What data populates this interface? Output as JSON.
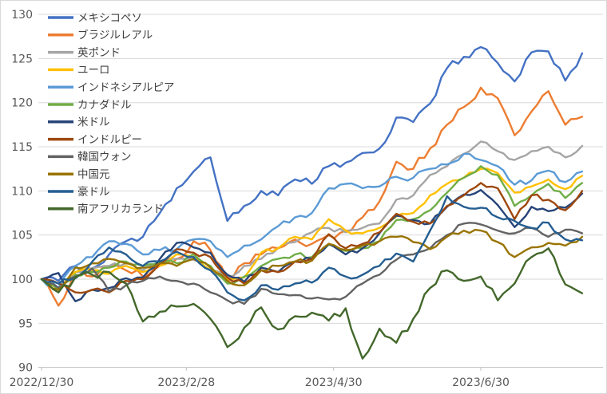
{
  "chart_data": {
    "type": "line",
    "title": "",
    "legend_position": "top-left-inside",
    "grid": true,
    "background_color": "#ffffff",
    "gridline_color": "#d9d9d9",
    "axis_line_color": "#bfbfbf",
    "axis_label_color": "#595959",
    "legend_text_color": "#404040",
    "y_axis": {
      "min": 90,
      "max": 130,
      "step": 5,
      "tick_labels": [
        "90",
        "95",
        "100",
        "105",
        "110",
        "115",
        "120",
        "125",
        "130"
      ]
    },
    "x_axis": {
      "tick_labels": [
        "2022/12/30",
        "2023/2/28",
        "2023/4/30",
        "2023/6/30"
      ],
      "tick_day_offsets": [
        0,
        60,
        121,
        182
      ],
      "total_days": 224,
      "sample_step_days": 7
    },
    "base_index_value": 100,
    "series": [
      {
        "name": "メキシコペソ",
        "color": "#4472C4",
        "values": [
          100,
          99.8,
          101.5,
          101.2,
          102.8,
          104.3,
          104.8,
          107.5,
          110.3,
          112.2,
          113.8,
          106.6,
          108.3,
          110,
          109.5,
          111.3,
          110.8,
          112.8,
          113.2,
          114.3,
          114.8,
          118.3,
          117.8,
          119.9,
          123.9,
          125.2,
          126.3,
          124.5,
          122.4,
          125.7,
          125.8,
          122.5,
          125.6
        ]
      },
      {
        "name": "ブラジルレアル",
        "color": "#ED7D31",
        "values": [
          100,
          97,
          100.8,
          100.3,
          101.5,
          101,
          100.3,
          101.5,
          102.3,
          104.3,
          103.3,
          99.8,
          101.8,
          102.8,
          103.5,
          104.5,
          104,
          105,
          105.5,
          107,
          108.8,
          113.3,
          112.5,
          114.8,
          117.5,
          119.5,
          121.7,
          120.5,
          116.3,
          119,
          121.3,
          117.5,
          118.4
        ]
      },
      {
        "name": "英ポンド",
        "color": "#A5A5A5",
        "values": [
          100,
          99,
          100.8,
          101.2,
          101.5,
          101.8,
          101,
          101.8,
          102.3,
          102.2,
          101,
          100.2,
          101.5,
          102.3,
          103.5,
          104.2,
          105.3,
          105.8,
          105.3,
          105.8,
          106.3,
          109,
          109.5,
          111.8,
          112.8,
          114.2,
          115.6,
          114.5,
          113.5,
          114.5,
          115,
          113.8,
          115.1
        ]
      },
      {
        "name": "ユーロ",
        "color": "#FFC000",
        "values": [
          100,
          98.8,
          100.8,
          101,
          100.6,
          101.5,
          100.8,
          101.5,
          102.8,
          102.5,
          101,
          100,
          100.2,
          103,
          103.5,
          104.8,
          104.5,
          106.8,
          105.5,
          105.2,
          105.8,
          107.1,
          107.5,
          109.5,
          110.8,
          111.5,
          112.5,
          112,
          109.8,
          110.5,
          111.3,
          110.2,
          111.7
        ]
      },
      {
        "name": "インドネシアルピア",
        "color": "#5B9BD5",
        "values": [
          100,
          99,
          101.5,
          102.5,
          104.3,
          104,
          102.8,
          103.3,
          103.4,
          104.5,
          104.3,
          102.5,
          103.8,
          104.5,
          106,
          107,
          107.5,
          110.3,
          110.8,
          110.3,
          110.5,
          111.6,
          111.5,
          112.5,
          113,
          114.2,
          113.5,
          112.8,
          110.7,
          111.2,
          112.3,
          111,
          112.2
        ]
      },
      {
        "name": "カナダドル",
        "color": "#70AD47",
        "values": [
          100,
          98.8,
          100.5,
          100.8,
          101.3,
          102,
          101.5,
          102,
          101.8,
          102.8,
          101.5,
          99.5,
          100.3,
          101.5,
          102.3,
          102.8,
          102.5,
          103.9,
          103.2,
          103.5,
          104.3,
          106.7,
          106.8,
          107.8,
          109.8,
          111.5,
          112.8,
          111.8,
          108.3,
          109.5,
          110.8,
          109.2,
          110.9
        ]
      },
      {
        "name": "米ドル",
        "color": "#264478",
        "values": [
          100,
          100.7,
          97.5,
          98.8,
          99,
          100.1,
          100.2,
          102.3,
          104.1,
          103.6,
          103,
          100.5,
          99.7,
          101.3,
          100.8,
          102,
          102.3,
          104,
          102.8,
          103.5,
          105.2,
          107.2,
          106.7,
          106.3,
          108.2,
          109.6,
          110.1,
          108.4,
          105.9,
          108.2,
          107.7,
          108.1,
          109.7
        ]
      },
      {
        "name": "インドルピー",
        "color": "#9E480E",
        "values": [
          100,
          99.5,
          98.5,
          98.8,
          98.5,
          99.8,
          100,
          101.8,
          103.4,
          103,
          102.5,
          100.2,
          99.5,
          101,
          100.8,
          102,
          102.3,
          105.1,
          103.5,
          104,
          105.3,
          107.4,
          106.5,
          106.3,
          108.3,
          109.5,
          110.9,
          110.3,
          106.8,
          109.5,
          109,
          107.8,
          110
        ]
      },
      {
        "name": "韓国ウォン",
        "color": "#636363",
        "values": [
          100,
          99,
          100.3,
          101.2,
          98.6,
          99.3,
          99.8,
          100.3,
          99.8,
          99.5,
          98.5,
          97.6,
          97.2,
          98.9,
          98.3,
          98.2,
          97.8,
          97.7,
          98,
          99.5,
          100.5,
          102.2,
          102.8,
          103.5,
          105,
          106.3,
          106.2,
          105.5,
          105.2,
          105.8,
          104.8,
          105.6,
          105.2
        ]
      },
      {
        "name": "中国元",
        "color": "#997300",
        "values": [
          100,
          98.8,
          101.3,
          101.8,
          102.3,
          101.8,
          101.3,
          101.8,
          101.5,
          102.3,
          101.3,
          99.8,
          99.3,
          101,
          101.5,
          102,
          102.1,
          104,
          103.3,
          103.8,
          104.3,
          104.8,
          104.2,
          103.4,
          104.8,
          105.5,
          105.5,
          104.2,
          102.5,
          103.6,
          104.1,
          103.8,
          104.8
        ]
      },
      {
        "name": "豪ドル",
        "color": "#255E91",
        "values": [
          100,
          99.5,
          100.1,
          102,
          103.6,
          102.8,
          101.5,
          102,
          103.1,
          102.5,
          101,
          98.5,
          97.6,
          99.3,
          98.8,
          99.5,
          99.6,
          101.3,
          100.3,
          100.5,
          101.5,
          102.9,
          102,
          105.5,
          109.4,
          108.2,
          108.1,
          107,
          106.6,
          105.8,
          106.4,
          104.5,
          104.4
        ]
      },
      {
        "name": "南アフリカランド",
        "color": "#43682B",
        "values": [
          100,
          98.5,
          100.2,
          100.5,
          100.8,
          99.5,
          95.2,
          96.3,
          96.9,
          97.2,
          95.5,
          92.3,
          94.5,
          96.8,
          94.3,
          95.8,
          96.2,
          95.3,
          96.7,
          91,
          94.4,
          92.8,
          95.5,
          99,
          101,
          99.8,
          100.3,
          97.6,
          99.5,
          102.5,
          103.5,
          99.4,
          98.4
        ]
      }
    ]
  }
}
